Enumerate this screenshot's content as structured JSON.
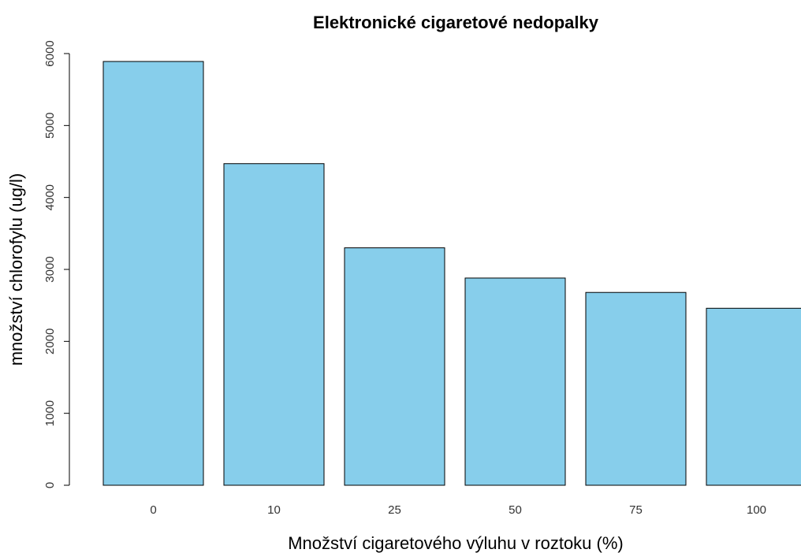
{
  "chart_data": {
    "type": "bar",
    "title": "Elektronické cigaretové nedopalky",
    "xlabel": "Množství cigaretového výluhu v roztoku (%)",
    "ylabel": "množství chlorofylu (ug/l)",
    "categories": [
      "0",
      "10",
      "25",
      "50",
      "75",
      "100"
    ],
    "values": [
      5890,
      4470,
      3300,
      2880,
      2680,
      2460
    ],
    "ylim": [
      0,
      6000
    ],
    "yticks": [
      "0",
      "1000",
      "2000",
      "3000",
      "4000",
      "5000",
      "6000"
    ],
    "bar_color": "#87CEEB",
    "bar_border_color": "#000000",
    "grid": false,
    "legend": "none"
  }
}
